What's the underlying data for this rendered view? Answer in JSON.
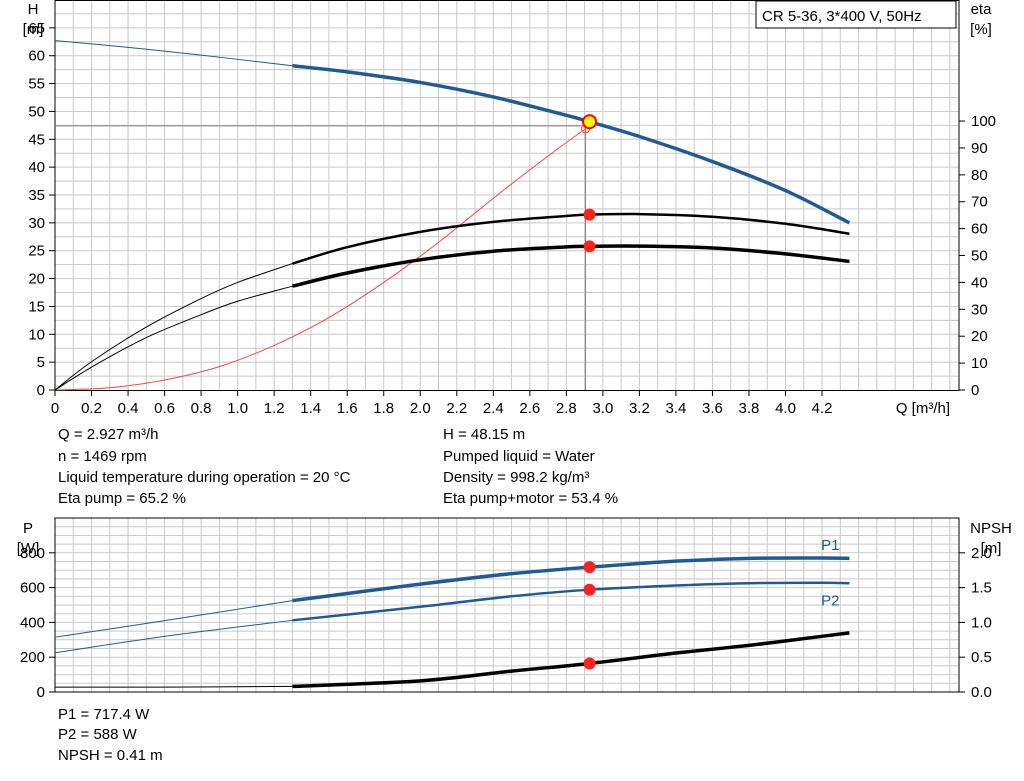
{
  "chart_data": [
    {
      "type": "line",
      "title": "CR 5-36, 3*400 V, 50Hz",
      "xlabel": "Q [m³/h]",
      "ylabel": [
        "H",
        "[m]"
      ],
      "ylabel_right": [
        "eta",
        "[%]"
      ],
      "xlim": [
        0,
        4.95
      ],
      "ylim": [
        0,
        70
      ],
      "ylim_right": [
        0,
        145
      ],
      "x_ticks": [
        "0",
        "0.2",
        "0.4",
        "0.6",
        "0.8",
        "1.0",
        "1.2",
        "1.4",
        "1.6",
        "1.8",
        "2.0",
        "2.2",
        "2.4",
        "2.6",
        "2.8",
        "3.0",
        "3.2",
        "3.4",
        "3.6",
        "3.8",
        "4.0",
        "4.2"
      ],
      "y_ticks": [
        "0",
        "5",
        "10",
        "15",
        "20",
        "25",
        "30",
        "35",
        "40",
        "45",
        "50",
        "55",
        "60",
        "65"
      ],
      "y_ticks_right": [
        "0",
        "10",
        "20",
        "30",
        "40",
        "50",
        "60",
        "70",
        "80",
        "90",
        "100"
      ],
      "grid": true,
      "series": [
        {
          "axis": "left",
          "color": "#1f5a96",
          "x": [
            0,
            0.4,
            0.8,
            1.3,
            1.6,
            2.0,
            2.4,
            2.8,
            2.927,
            3.2,
            3.6,
            4.0,
            4.35
          ],
          "y": [
            62.7,
            61.5,
            60.1,
            58.2,
            57.1,
            55.2,
            52.6,
            49.3,
            48.15,
            45.5,
            41.0,
            35.8,
            30.0
          ]
        },
        {
          "axis": "right",
          "color": "#000000",
          "x": [
            0,
            0.2,
            0.5,
            0.8,
            1.0,
            1.3,
            1.6,
            2.0,
            2.4,
            2.8,
            2.927,
            3.2,
            3.6,
            4.0,
            4.35
          ],
          "y": [
            0,
            10.5,
            23.4,
            34.0,
            40.0,
            47.0,
            53.1,
            58.8,
            62.5,
            64.7,
            65.2,
            65.4,
            64.4,
            61.8,
            58.1
          ]
        },
        {
          "axis": "right",
          "color": "#000000",
          "x": [
            0,
            0.2,
            0.5,
            0.8,
            1.0,
            1.3,
            1.6,
            2.0,
            2.4,
            2.8,
            2.927,
            3.2,
            3.6,
            4.0,
            4.35
          ],
          "y": [
            0,
            8.5,
            19.5,
            28.0,
            33.0,
            38.6,
            43.5,
            48.4,
            51.6,
            53.2,
            53.4,
            53.5,
            52.8,
            50.6,
            47.8
          ]
        },
        {
          "axis": "left",
          "color": "#ff4040",
          "x": [
            0,
            0.3,
            0.6,
            0.9,
            1.2,
            1.5,
            1.8,
            2.1,
            2.4,
            2.7,
            2.927
          ],
          "y": [
            0,
            0.4,
            1.8,
            4.2,
            8.0,
            13.0,
            19.3,
            26.5,
            34.4,
            42.0,
            47.4
          ]
        }
      ],
      "duty_point": {
        "x": 2.927,
        "y": 48.15,
        "eta_pump": 65.2,
        "eta_pump_motor": 53.4
      }
    },
    {
      "type": "line",
      "xlim": [
        0,
        4.95
      ],
      "ylim": [
        0,
        1000
      ],
      "ylim_right": [
        0,
        2.5
      ],
      "ylabel": [
        "P",
        "[W]"
      ],
      "ylabel_right": [
        "NPSH",
        "[m]"
      ],
      "y_ticks": [
        "0",
        "200",
        "400",
        "600",
        "800"
      ],
      "y_ticks_right": [
        "0.0",
        "0.5",
        "1.0",
        "1.5",
        "2.0"
      ],
      "grid": true,
      "series": [
        {
          "name": "P1",
          "axis": "left",
          "color": "#1f5a96",
          "x": [
            0,
            0.6,
            1.3,
            2.0,
            2.5,
            2.927,
            3.4,
            3.8,
            4.2,
            4.35
          ],
          "y": [
            315,
            410,
            525,
            620,
            680,
            717.4,
            752,
            768,
            770,
            768
          ]
        },
        {
          "name": "P2",
          "axis": "left",
          "color": "#1f5a96",
          "x": [
            0,
            0.6,
            1.3,
            2.0,
            2.5,
            2.927,
            3.4,
            3.8,
            4.2,
            4.35
          ],
          "y": [
            225,
            320,
            412,
            490,
            550,
            588,
            612,
            625,
            628,
            625
          ]
        },
        {
          "axis": "right",
          "color": "#000000",
          "x": [
            0,
            0.6,
            1.3,
            2.0,
            2.5,
            2.927,
            3.4,
            3.8,
            4.2,
            4.35
          ],
          "y": [
            0.07,
            0.07,
            0.08,
            0.16,
            0.3,
            0.41,
            0.56,
            0.67,
            0.8,
            0.85
          ]
        }
      ],
      "duty_point": {
        "x": 2.927,
        "p1": 717.4,
        "p2": 588,
        "npsh": 0.41
      }
    }
  ],
  "readouts": {
    "q": "Q = 2.927 m³/h",
    "n": "n = 1469 rpm",
    "temp": "Liquid temperature during operation = 20 °C",
    "eta_pump": "Eta pump = 65.2 %",
    "h": "H = 48.15 m",
    "liquid": "Pumped liquid = Water",
    "density": "Density = 998.2 kg/m³",
    "eta_pm": "Eta pump+motor = 53.4 %",
    "p1": "P1 = 717.4 W",
    "p2": "P2 = 588 W",
    "npsh": "NPSH = 0.41 m"
  }
}
